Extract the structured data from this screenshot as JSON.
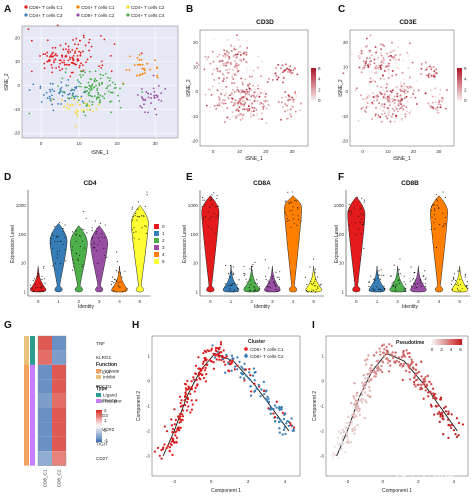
{
  "panel_letters": [
    "A",
    "B",
    "C",
    "D",
    "E",
    "F",
    "G",
    "H",
    "I"
  ],
  "colors": {
    "C1": "#e41a1c",
    "C2": "#ff7f00",
    "C3": "#984ea3",
    "C4": "#ffd92f",
    "C5": "#377eb8",
    "C6": "#4daf4a",
    "violin0": "#e41a1c",
    "violin1": "#377eb8",
    "violin2": "#4daf4a",
    "violin3": "#984ea3",
    "violin4": "#ff7f00",
    "violin5": "#ffff33",
    "feature_low": "#f3e4e4",
    "feature_high": "#b2182b",
    "heat_high": "#d73027",
    "heat_low": "#4575b4"
  },
  "watermark": "知乎 @熊猫",
  "chart_data": [
    {
      "panel": "A",
      "type": "scatter",
      "title": "",
      "xlabel": "tSNE_1",
      "ylabel": "tSNE_2",
      "xticks": [
        "0",
        "10",
        "20",
        "30"
      ],
      "yticks": [
        "-20",
        "-10",
        "0",
        "10",
        "20"
      ],
      "xlim": [
        -5,
        36
      ],
      "ylim": [
        -22,
        25
      ],
      "legend": [
        "CD8+ T cells C1",
        "CD4+ T cells C1",
        "CD4+ T cells C2",
        "CD4+ T cells C3",
        "CD8+ T cells C2",
        "CD4+ T cells C4"
      ],
      "series_centers": [
        {
          "name": "CD8+ T cells C1",
          "cx": 7,
          "cy": 12,
          "sx": 5,
          "sy": 4
        },
        {
          "name": "CD4+ T cells C1",
          "cx": 6,
          "cy": -3,
          "sx": 4,
          "sy": 3
        },
        {
          "name": "CD4+ T cells C2",
          "cx": 27,
          "cy": 8,
          "sx": 2,
          "sy": 2
        },
        {
          "name": "CD4+ T cells C3",
          "cx": 29,
          "cy": -5,
          "sx": 2,
          "sy": 3
        },
        {
          "name": "CD8+ T cells C2",
          "cx": 14,
          "cy": -2,
          "sx": 4,
          "sy": 4
        },
        {
          "name": "CD4+ T cells C4",
          "cx": 10,
          "cy": -9,
          "sx": 4,
          "sy": 2
        }
      ]
    },
    {
      "panel": "B",
      "type": "scatter",
      "title": "CD3D",
      "xlabel": "tSNE_1",
      "ylabel": "tSNE_2",
      "xticks": [
        "0",
        "10",
        "20",
        "30"
      ],
      "yticks": [
        "-20",
        "-10",
        "0",
        "10",
        "20"
      ],
      "colorbar": [
        "6",
        "4",
        "2",
        "0"
      ]
    },
    {
      "panel": "C",
      "type": "scatter",
      "title": "CD3E",
      "xlabel": "tSNE_1",
      "ylabel": "tSNE_2",
      "xticks": [
        "0",
        "10",
        "20",
        "30"
      ],
      "yticks": [
        "-20",
        "-10",
        "0",
        "10",
        "20"
      ],
      "colorbar": [
        "6",
        "4",
        "2",
        "0"
      ]
    },
    {
      "panel": "D",
      "type": "violin",
      "title": "CD4",
      "xlabel": "Identity",
      "ylabel": "Expression Level",
      "categories": [
        "0",
        "1",
        "2",
        "3",
        "4",
        "5"
      ],
      "yticks": [
        "1",
        "10",
        "100",
        "1000"
      ],
      "medians": [
        2,
        60,
        50,
        50,
        1.3,
        250
      ],
      "legend": [
        "0",
        "1",
        "2",
        "3",
        "4",
        "5"
      ]
    },
    {
      "panel": "E",
      "type": "violin",
      "title": "CD8A",
      "xlabel": "Identity",
      "ylabel": "Expression Level",
      "categories": [
        "0",
        "1",
        "2",
        "3",
        "4",
        "5"
      ],
      "yticks": [
        "1",
        "10",
        "100",
        "1000"
      ],
      "medians": [
        600,
        2,
        2,
        2,
        800,
        2
      ]
    },
    {
      "panel": "F",
      "type": "violin",
      "title": "CD8B",
      "xlabel": "Identity",
      "ylabel": "Expression Level",
      "categories": [
        "0",
        "1",
        "2",
        "3",
        "4",
        "5"
      ],
      "yticks": [
        "1",
        "10",
        "100",
        "1000"
      ],
      "medians": [
        500,
        2,
        2,
        2,
        600,
        2
      ]
    },
    {
      "panel": "G",
      "type": "heatmap",
      "title": "",
      "rows": [
        "TNF",
        "KLRG1",
        "CTLA4",
        "PDCD1",
        "TNFRSF9",
        "LAG3",
        "HAVCR2",
        "TIGIT",
        "CD27"
      ],
      "columns": [
        "CD8_C1",
        "CD8_C2"
      ],
      "values": [
        [
          0.8,
          -0.8
        ],
        [
          0.7,
          -0.7
        ],
        [
          -0.8,
          0.8
        ],
        [
          -0.8,
          0.8
        ],
        [
          -0.7,
          0.7
        ],
        [
          -0.8,
          0.8
        ],
        [
          -0.8,
          0.8
        ],
        [
          -0.8,
          0.8
        ],
        [
          -0.6,
          0.6
        ]
      ],
      "legend": {
        "function_title": "Function",
        "function": [
          "Activate",
          "Inhibit"
        ],
        "type_title": "Type",
        "type": [
          "Ligand",
          "Receptor"
        ],
        "scale": [
          "2",
          "1",
          "0",
          "-1"
        ]
      }
    },
    {
      "panel": "H",
      "type": "scatter",
      "title": "",
      "xlabel": "Component 1",
      "ylabel": "Component 2",
      "xticks": [
        "-2",
        "0",
        "2",
        "4"
      ],
      "yticks": [
        "-3",
        "-2",
        "-1",
        "0",
        "1"
      ],
      "legend_title": "Cluster",
      "legend": [
        "CD8+ T cells C1",
        "CD8+ T cells C2"
      ]
    },
    {
      "panel": "I",
      "type": "scatter",
      "title": "",
      "xlabel": "Component 1",
      "ylabel": "Component 2",
      "xticks": [
        "-2",
        "0",
        "2",
        "4"
      ],
      "yticks": [
        "-3",
        "-2",
        "-1",
        "0",
        "1"
      ],
      "legend_title": "Pseudotime",
      "colorbar": [
        "0",
        "2",
        "4",
        "6"
      ]
    }
  ]
}
